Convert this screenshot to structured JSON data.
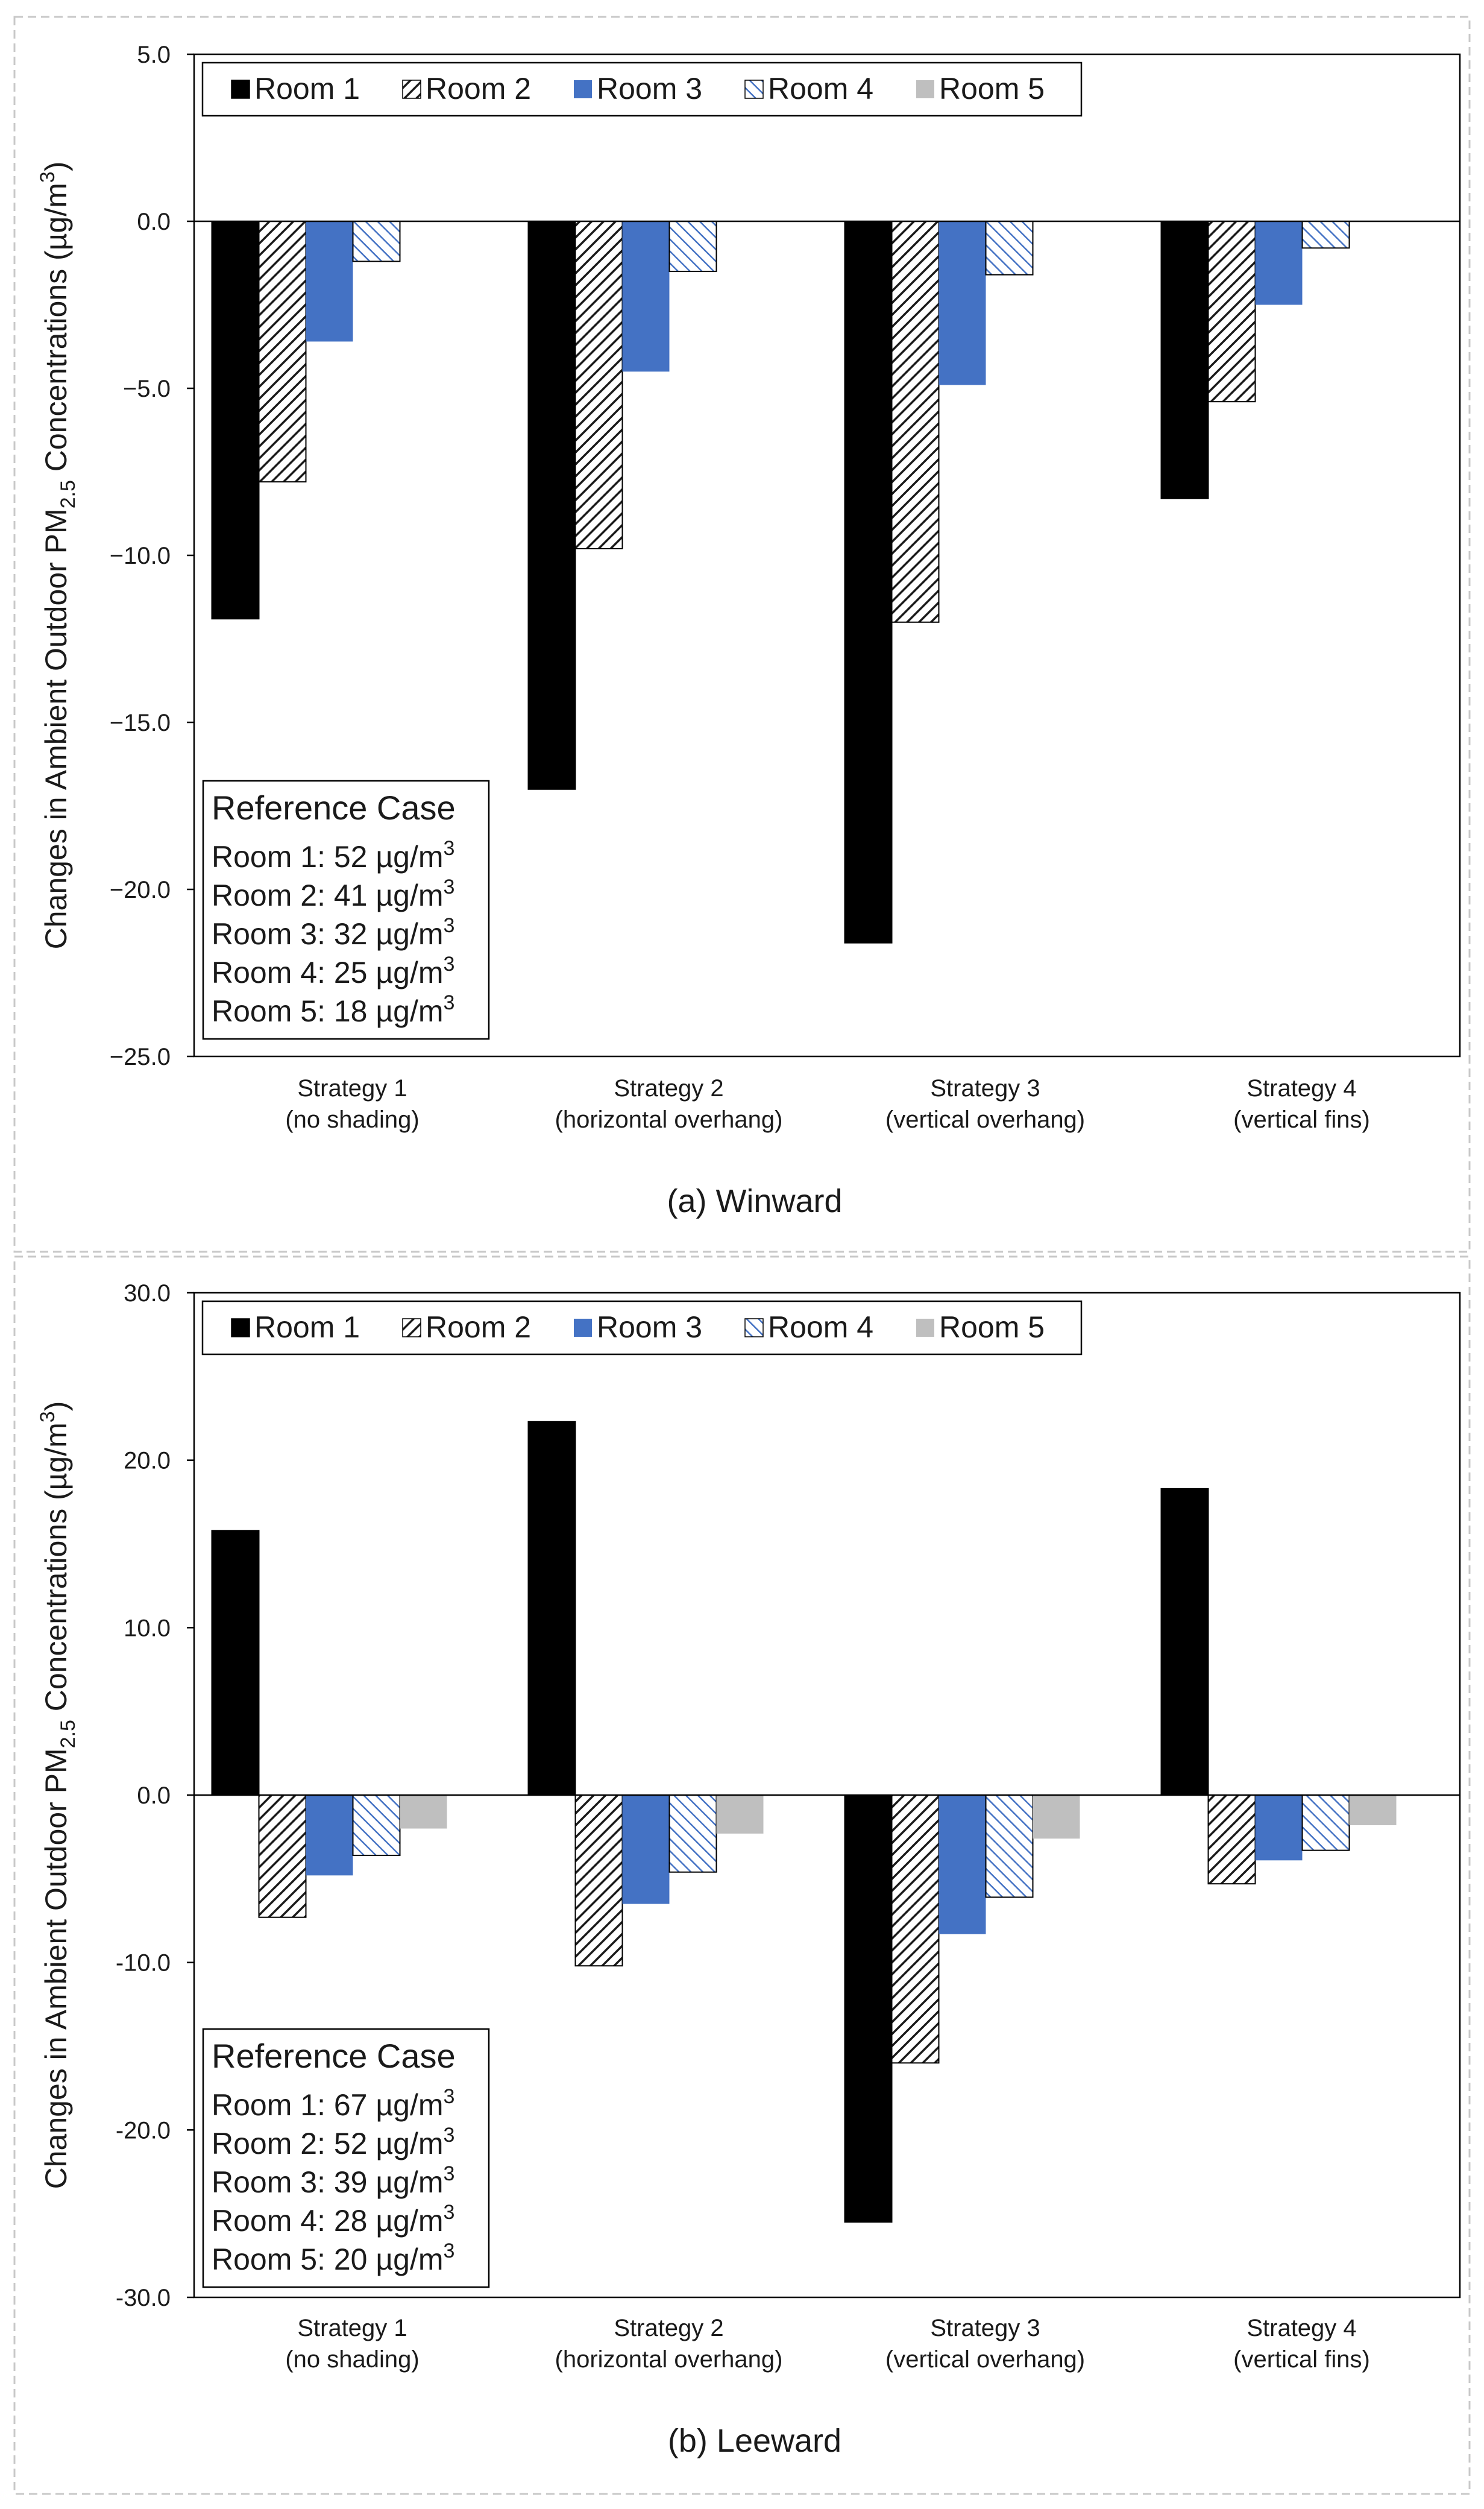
{
  "colors": {
    "room1": "#000000",
    "room2_hatch": "#1a1a1a",
    "room3": "#4472c4",
    "room4_hatch": "#4472c4",
    "room5": "#bfbfbf"
  },
  "chart_data": [
    {
      "type": "bar",
      "caption": "(a) Winward",
      "ylabel_pre": "Changes in Ambient Outdoor PM",
      "ylabel_sub": "2.5",
      "ylabel_post": " Concentrations (µg/m",
      "ylabel_sup": "3",
      "ylabel_end": ")",
      "ylim": [
        -25,
        5
      ],
      "yticks": [
        5,
        0,
        -5,
        -10,
        -15,
        -20,
        -25
      ],
      "ytick_labels": [
        "5.0",
        "0.0",
        "−5.0",
        "−10.0",
        "−15.0",
        "−20.0",
        "−25.0"
      ],
      "categories": [
        {
          "line1": "Strategy 1",
          "line2": "(no shading)"
        },
        {
          "line1": "Strategy 2",
          "line2": "(horizontal overhang)"
        },
        {
          "line1": "Strategy 3",
          "line2": "(vertical overhang)"
        },
        {
          "line1": "Strategy 4",
          "line2": "(vertical fins)"
        }
      ],
      "series": [
        {
          "name": "Room 1",
          "values": [
            -11.9,
            -17.0,
            -21.6,
            -8.3
          ]
        },
        {
          "name": "Room 2",
          "values": [
            -7.8,
            -9.8,
            -12.0,
            -5.4
          ]
        },
        {
          "name": "Room 3",
          "values": [
            -3.6,
            -4.5,
            -4.9,
            -2.5
          ]
        },
        {
          "name": "Room 4",
          "values": [
            -1.2,
            -1.5,
            -1.6,
            -0.8
          ]
        },
        {
          "name": "Room 5",
          "values": [
            0,
            0,
            0,
            0
          ]
        }
      ],
      "legend": [
        "Room 1",
        "Room 2",
        "Room 3",
        "Room 4",
        "Room 5"
      ],
      "legend_position": "top-left",
      "reference": {
        "title": "Reference Case",
        "unit_pre": "µg/m",
        "unit_sup": "3",
        "items": [
          {
            "label": "Room 1:",
            "value": "52"
          },
          {
            "label": "Room 2:",
            "value": "41"
          },
          {
            "label": "Room 3:",
            "value": "32"
          },
          {
            "label": "Room 4:",
            "value": "25"
          },
          {
            "label": "Room 5:",
            "value": "18"
          }
        ]
      }
    },
    {
      "type": "bar",
      "caption": "(b) Leeward",
      "ylabel_pre": "Changes in Ambient Outdoor PM",
      "ylabel_sub": "2.5",
      "ylabel_post": " Concentrations (µg/m",
      "ylabel_sup": "3",
      "ylabel_end": ")",
      "ylim": [
        -30,
        30
      ],
      "yticks": [
        30,
        20,
        10,
        0,
        -10,
        -20,
        -30
      ],
      "ytick_labels": [
        "30.0",
        "20.0",
        "10.0",
        "0.0",
        "-10.0",
        "-20.0",
        "-30.0"
      ],
      "categories": [
        {
          "line1": "Strategy 1",
          "line2": "(no shading)"
        },
        {
          "line1": "Strategy 2",
          "line2": "(horizontal overhang)"
        },
        {
          "line1": "Strategy 3",
          "line2": "(vertical overhang)"
        },
        {
          "line1": "Strategy 4",
          "line2": "(vertical fins)"
        }
      ],
      "series": [
        {
          "name": "Room 1",
          "values": [
            15.8,
            22.3,
            -25.5,
            18.3
          ]
        },
        {
          "name": "Room 2",
          "values": [
            -7.3,
            -10.2,
            -16.0,
            -5.3
          ]
        },
        {
          "name": "Room 3",
          "values": [
            -4.8,
            -6.5,
            -8.3,
            -3.9
          ]
        },
        {
          "name": "Room 4",
          "values": [
            -3.6,
            -4.6,
            -6.1,
            -3.3
          ]
        },
        {
          "name": "Room 5",
          "values": [
            -2.0,
            -2.3,
            -2.6,
            -1.8
          ]
        }
      ],
      "legend": [
        "Room 1",
        "Room 2",
        "Room 3",
        "Room 4",
        "Room 5"
      ],
      "legend_position": "top-left",
      "reference": {
        "title": "Reference Case",
        "unit_pre": "µg/m",
        "unit_sup": "3",
        "items": [
          {
            "label": "Room 1:",
            "value": "67"
          },
          {
            "label": "Room 2:",
            "value": "52"
          },
          {
            "label": "Room 3:",
            "value": "39"
          },
          {
            "label": "Room 4:",
            "value": "28"
          },
          {
            "label": "Room 5:",
            "value": "20"
          }
        ]
      }
    }
  ]
}
